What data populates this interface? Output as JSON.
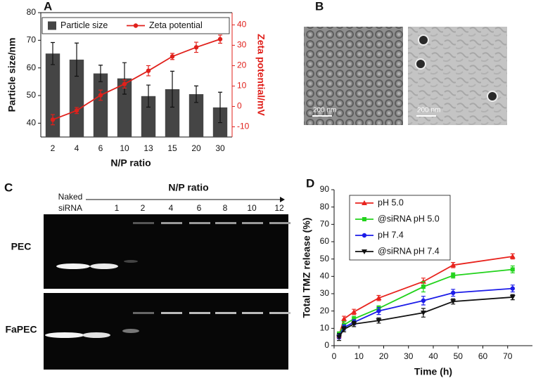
{
  "chart_data": [
    {
      "type": "bar",
      "panel": "A",
      "xlabel": "N/P ratio",
      "ylabel": "Particle size/nm",
      "y2label": "Zeta potential/mV",
      "categories": [
        "2",
        "4",
        "6",
        "10",
        "13",
        "15",
        "20",
        "30"
      ],
      "series": [
        {
          "name": "Particle size",
          "type": "bar",
          "color": "#454545",
          "values": [
            65.2,
            63,
            58,
            56.2,
            49.8,
            52.3,
            50.5,
            45.7
          ],
          "errors": [
            4,
            6,
            3,
            5.7,
            4,
            6.5,
            3,
            5.5
          ]
        },
        {
          "name": "Zeta potential",
          "type": "line",
          "axis": "y2",
          "color": "#e0201b",
          "values": [
            -6.5,
            -2,
            5.5,
            11,
            17.5,
            24.5,
            29,
            33
          ],
          "errors": [
            2.5,
            1.5,
            2.5,
            2,
            2.5,
            1.5,
            2.5,
            2
          ]
        }
      ],
      "ylim": [
        35,
        80
      ],
      "yticks": [
        40,
        50,
        60,
        70,
        80
      ],
      "y2lim": [
        -15,
        46
      ],
      "y2ticks": [
        -10,
        0,
        10,
        20,
        30,
        40
      ],
      "y2color": "#e0201b",
      "legend": "upper center"
    },
    {
      "type": "line",
      "panel": "D",
      "xlabel": "Time (h)",
      "ylabel": "Total TMZ release (%)",
      "x": [
        2,
        4,
        8,
        18,
        36,
        48,
        72
      ],
      "series": [
        {
          "name": "pH 5.0",
          "color": "#e8231d",
          "marker": "triangle",
          "values": [
            6,
            15.5,
            19.5,
            27.5,
            37,
            46.5,
            51.5
          ],
          "errors": [
            1.5,
            1.5,
            1.5,
            1.5,
            2,
            1.5,
            1.5
          ]
        },
        {
          "name": "@siRNA pH 5.0",
          "color": "#22d31c",
          "marker": "square",
          "values": [
            6.5,
            12,
            15.5,
            21.5,
            34,
            40.5,
            44
          ],
          "errors": [
            1.5,
            2,
            1.5,
            1.5,
            3,
            1.5,
            2
          ]
        },
        {
          "name": "pH 7.4",
          "color": "#1c1ce8",
          "marker": "circle",
          "values": [
            5.5,
            10.5,
            13.5,
            20,
            26,
            30.5,
            33
          ],
          "errors": [
            1.5,
            1.5,
            1.5,
            2,
            2.5,
            2,
            2
          ]
        },
        {
          "name": "@siRNA pH 7.4",
          "color": "#111111",
          "marker": "triangle-down",
          "values": [
            5,
            9.5,
            12.5,
            14.5,
            19,
            25.5,
            28
          ],
          "errors": [
            2,
            1.5,
            1.5,
            1.5,
            2.5,
            1.5,
            1.5
          ]
        }
      ],
      "xlim": [
        0,
        80
      ],
      "xticks": [
        0,
        10,
        20,
        30,
        40,
        50,
        60,
        70
      ],
      "ylim": [
        0,
        90
      ],
      "yticks": [
        0,
        10,
        20,
        30,
        40,
        50,
        60,
        70,
        80,
        90
      ],
      "legend": "upper left"
    }
  ],
  "micrographs": {
    "panel": "B",
    "scale_labels": [
      "200 nm",
      "200 nm"
    ]
  },
  "gel": {
    "panel": "C",
    "axis_label": "N/P ratio",
    "naked_label": [
      "Naked",
      "siRNA"
    ],
    "lanes": [
      "1",
      "2",
      "4",
      "6",
      "8",
      "10",
      "12"
    ],
    "rows": [
      "PEC",
      "FaPEC"
    ]
  }
}
